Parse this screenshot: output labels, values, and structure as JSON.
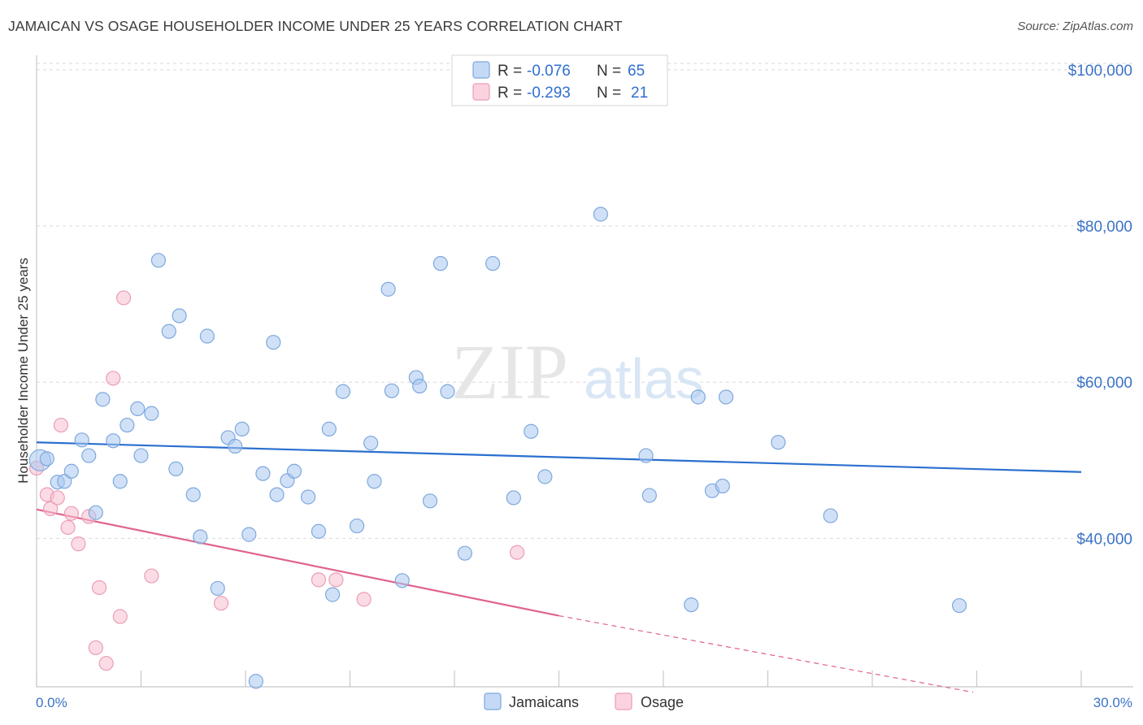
{
  "title": "JAMAICAN VS OSAGE HOUSEHOLDER INCOME UNDER 25 YEARS CORRELATION CHART",
  "source": "Source: ZipAtlas.com",
  "watermark": {
    "zip": "ZIP",
    "atlas": "atlas"
  },
  "colors": {
    "jamaicans_fill": "#a9c8f0",
    "jamaicans_stroke": "#7ea8de",
    "jamaicans_line": "#2a6fcf",
    "osage_fill": "#f7bfd0",
    "osage_stroke": "#eb9db6",
    "osage_line": "#e0638f",
    "tick_label": "#3b73c6",
    "grid": "#d9d9d9"
  },
  "legend_top": {
    "rows": [
      {
        "r_label": "R =",
        "r_value": "-0.076",
        "n_label": "N =",
        "n_value": "65"
      },
      {
        "r_label": "R =",
        "r_value": "-0.293",
        "n_label": "N =",
        "n_value": "21"
      }
    ]
  },
  "legend_bottom": [
    "Jamaicans",
    "Osage"
  ],
  "chart_data": {
    "type": "scatter",
    "title": "JAMAICAN VS OSAGE HOUSEHOLDER INCOME UNDER 25 YEARS CORRELATION CHART",
    "xlabel": "",
    "ylabel": "Householder Income Under 25 years",
    "xlim": [
      0,
      30
    ],
    "ylim": [
      21000,
      103000
    ],
    "x_tick_labels": [
      "0.0%",
      "30.0%"
    ],
    "y_ticks": [
      40000,
      60000,
      80000,
      100000
    ],
    "y_tick_labels": [
      "$40,000",
      "$60,000",
      "$80,000",
      "$100,000"
    ],
    "grid": true,
    "legend_placement": "top-center",
    "series": [
      {
        "name": "Jamaicans",
        "r": -0.076,
        "n": 65,
        "trend": {
          "x": [
            0,
            30
          ],
          "y": [
            52300,
            48500
          ]
        },
        "points": [
          [
            0.1,
            50000
          ],
          [
            0.3,
            50200
          ],
          [
            0.6,
            47200
          ],
          [
            0.8,
            47300
          ],
          [
            1.0,
            48600
          ],
          [
            1.3,
            52600
          ],
          [
            1.5,
            50600
          ],
          [
            1.7,
            43300
          ],
          [
            1.9,
            57800
          ],
          [
            2.2,
            52500
          ],
          [
            2.4,
            47300
          ],
          [
            2.6,
            54500
          ],
          [
            2.9,
            56600
          ],
          [
            3.0,
            50600
          ],
          [
            3.3,
            56000
          ],
          [
            3.5,
            75600
          ],
          [
            3.8,
            66500
          ],
          [
            4.0,
            48900
          ],
          [
            4.1,
            68500
          ],
          [
            4.5,
            45600
          ],
          [
            4.7,
            40200
          ],
          [
            4.9,
            65900
          ],
          [
            5.2,
            33600
          ],
          [
            5.5,
            52900
          ],
          [
            5.7,
            51800
          ],
          [
            5.9,
            54000
          ],
          [
            6.1,
            40500
          ],
          [
            6.3,
            21700
          ],
          [
            6.5,
            48300
          ],
          [
            6.8,
            65100
          ],
          [
            6.9,
            45600
          ],
          [
            7.2,
            47400
          ],
          [
            7.4,
            48600
          ],
          [
            7.8,
            45300
          ],
          [
            8.1,
            40900
          ],
          [
            8.4,
            54000
          ],
          [
            8.5,
            32800
          ],
          [
            8.8,
            58800
          ],
          [
            9.2,
            41600
          ],
          [
            9.6,
            52200
          ],
          [
            9.7,
            47300
          ],
          [
            10.1,
            71900
          ],
          [
            10.2,
            58900
          ],
          [
            10.5,
            34600
          ],
          [
            10.9,
            60600
          ],
          [
            11.0,
            59500
          ],
          [
            11.3,
            44800
          ],
          [
            11.6,
            75200
          ],
          [
            11.8,
            58800
          ],
          [
            12.3,
            38100
          ],
          [
            13.1,
            75200
          ],
          [
            13.7,
            45200
          ],
          [
            14.2,
            53700
          ],
          [
            14.6,
            47900
          ],
          [
            16.2,
            81500
          ],
          [
            17.5,
            50600
          ],
          [
            17.6,
            45500
          ],
          [
            18.8,
            31500
          ],
          [
            19.0,
            58100
          ],
          [
            19.4,
            46100
          ],
          [
            19.7,
            46700
          ],
          [
            19.8,
            58100
          ],
          [
            21.3,
            52300
          ],
          [
            22.8,
            42900
          ],
          [
            26.5,
            31400
          ]
        ]
      },
      {
        "name": "Osage",
        "r": -0.293,
        "n": 21,
        "trend": {
          "x": [
            0,
            15
          ],
          "y": [
            43700,
            30100
          ]
        },
        "trend_dashed": {
          "x": [
            15,
            26.9
          ],
          "y": [
            30100,
            20300
          ]
        },
        "points": [
          [
            0.0,
            49000
          ],
          [
            0.3,
            45600
          ],
          [
            0.4,
            43800
          ],
          [
            0.6,
            45200
          ],
          [
            0.7,
            54500
          ],
          [
            0.9,
            41400
          ],
          [
            1.0,
            43200
          ],
          [
            1.2,
            39300
          ],
          [
            1.5,
            42800
          ],
          [
            1.7,
            26000
          ],
          [
            1.8,
            33700
          ],
          [
            2.0,
            24000
          ],
          [
            2.2,
            60500
          ],
          [
            2.4,
            30000
          ],
          [
            2.5,
            70800
          ],
          [
            3.3,
            35200
          ],
          [
            5.3,
            31700
          ],
          [
            8.1,
            34700
          ],
          [
            8.6,
            34700
          ],
          [
            9.4,
            32200
          ],
          [
            13.8,
            38200
          ]
        ]
      }
    ]
  }
}
